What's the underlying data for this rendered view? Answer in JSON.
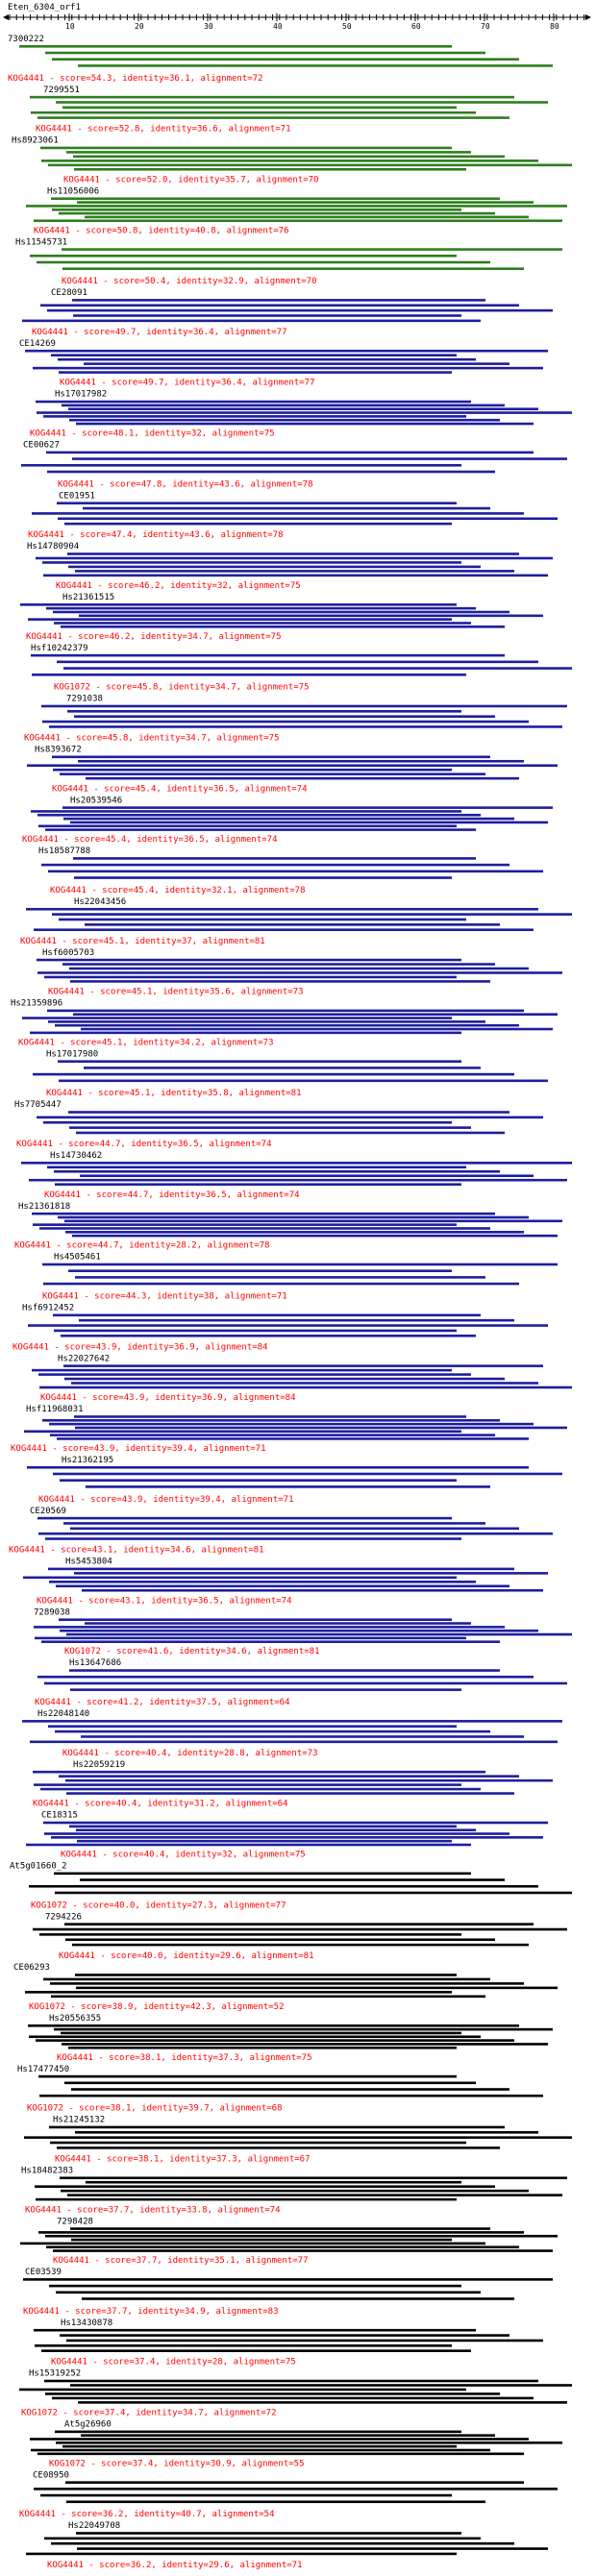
{
  "query": {
    "name": "Eten_6304_orf1"
  },
  "axis": {
    "ticks": [
      "10",
      "20",
      "30",
      "40",
      "50",
      "60",
      "70",
      "80"
    ]
  },
  "colors": {
    "top": "#2e7d1e",
    "mid": "#1e1e9e",
    "low": "#000000",
    "summary": "#ff0000"
  },
  "hits": [
    {
      "id": "7300222",
      "summary": "KOG4441 - score=54.3, identity=36.1, alignment=72",
      "color": "top"
    },
    {
      "id": "7299551",
      "summary": "KOG4441 - score=52.8, identity=36.6, alignment=71",
      "color": "top"
    },
    {
      "id": "Hs8923061",
      "summary": "KOG4441 - score=52.0, identity=35.7, alignment=70",
      "color": "top"
    },
    {
      "id": "Hs11056006",
      "summary": "KOG4441 - score=50.8, identity=40.8, alignment=76",
      "color": "top"
    },
    {
      "id": "Hs11545731",
      "summary": "KOG4441 - score=50.4, identity=32.9, alignment=70",
      "color": "top"
    },
    {
      "id": "CE28091",
      "summary": "KOG4441 - score=49.7, identity=36.4, alignment=77",
      "color": "mid"
    },
    {
      "id": "CE14269",
      "summary": "KOG4441 - score=49.7, identity=36.4, alignment=77",
      "color": "mid"
    },
    {
      "id": "Hs17017982",
      "summary": "KOG4441 - score=48.1, identity=32, alignment=75",
      "color": "mid"
    },
    {
      "id": "CE00627",
      "summary": "KOG4441 - score=47.8, identity=43.6, alignment=78",
      "color": "mid"
    },
    {
      "id": "CE01951",
      "summary": "KOG4441 - score=47.4, identity=43.6, alignment=78",
      "color": "mid"
    },
    {
      "id": "Hs14780904",
      "summary": "KOG4441 - score=46.2, identity=32, alignment=75",
      "color": "mid"
    },
    {
      "id": "Hs21361515",
      "summary": "KOG4441 - score=46.2, identity=34.7, alignment=75",
      "color": "mid"
    },
    {
      "id": "Hsf10242379",
      "summary": "KOG1072 - score=45.8, identity=34.7, alignment=75",
      "color": "mid"
    },
    {
      "id": "7291038",
      "summary": "KOG4441 - score=45.8, identity=34.7, alignment=75",
      "color": "mid"
    },
    {
      "id": "Hs8393672",
      "summary": "KOG4441 - score=45.4, identity=36.5, alignment=74",
      "color": "mid"
    },
    {
      "id": "Hs20539546",
      "summary": "KOG4441 - score=45.4, identity=36.5, alignment=74",
      "color": "mid"
    },
    {
      "id": "Hs18587788",
      "summary": "KOG4441 - score=45.4, identity=32.1, alignment=78",
      "color": "mid"
    },
    {
      "id": "Hs22043456",
      "summary": "KOG4441 - score=45.1, identity=37, alignment=81",
      "color": "mid"
    },
    {
      "id": "Hsf6005703",
      "summary": "KOG4441 - score=45.1, identity=35.6, alignment=73",
      "color": "mid"
    },
    {
      "id": "Hs21359896",
      "summary": "KOG4441 - score=45.1, identity=34.2, alignment=73",
      "color": "mid"
    },
    {
      "id": "Hs17017980",
      "summary": "KOG4441 - score=45.1, identity=35.8, alignment=81",
      "color": "mid"
    },
    {
      "id": "Hs7705447",
      "summary": "KOG4441 - score=44.7, identity=36.5, alignment=74",
      "color": "mid"
    },
    {
      "id": "Hs14730462",
      "summary": "KOG4441 - score=44.7, identity=36.5, alignment=74",
      "color": "mid"
    },
    {
      "id": "Hs21361818",
      "summary": "KOG4441 - score=44.7, identity=28.2, alignment=78",
      "color": "mid"
    },
    {
      "id": "Hs4505461",
      "summary": "KOG4441 - score=44.3, identity=38, alignment=71",
      "color": "mid"
    },
    {
      "id": "Hsf6912452",
      "summary": "KOG4441 - score=43.9, identity=36.9, alignment=84",
      "color": "mid"
    },
    {
      "id": "Hs22027642",
      "summary": "KOG4441 - score=43.9, identity=36.9, alignment=84",
      "color": "mid"
    },
    {
      "id": "Hsf11968031",
      "summary": "KOG4441 - score=43.9, identity=39.4, alignment=71",
      "color": "mid"
    },
    {
      "id": "Hs21362195",
      "summary": "KOG4441 - score=43.9, identity=39.4, alignment=71",
      "color": "mid"
    },
    {
      "id": "CE20569",
      "summary": "KOG4441 - score=43.1, identity=34.6, alignment=81",
      "color": "mid"
    },
    {
      "id": "Hs5453804",
      "summary": "KOG4441 - score=43.1, identity=36.5, alignment=74",
      "color": "mid"
    },
    {
      "id": "7289038",
      "summary": "KOG1072 - score=41.6, identity=34.6, alignment=81",
      "color": "mid"
    },
    {
      "id": "Hs13647686",
      "summary": "KOG4441 - score=41.2, identity=37.5, alignment=64",
      "color": "mid"
    },
    {
      "id": "Hs22048140",
      "summary": "KOG4441 - score=40.4, identity=28.8, alignment=73",
      "color": "mid"
    },
    {
      "id": "Hs22059219",
      "summary": "KOG4441 - score=40.4, identity=31.2, alignment=64",
      "color": "mid"
    },
    {
      "id": "CE18315",
      "summary": "KOG4441 - score=40.4, identity=32, alignment=75",
      "color": "mid"
    },
    {
      "id": "At5g01660_2",
      "summary": "KOG1072 - score=40.0, identity=27.3, alignment=77",
      "color": "low"
    },
    {
      "id": "7294226",
      "summary": "KOG4441 - score=40.0, identity=29.6, alignment=81",
      "color": "low"
    },
    {
      "id": "CE06293",
      "summary": "KOG1072 - score=38.9, identity=42.3, alignment=52",
      "color": "low"
    },
    {
      "id": "Hs20556355",
      "summary": "KOG4441 - score=38.1, identity=37.3, alignment=75",
      "color": "low"
    },
    {
      "id": "Hs17477450",
      "summary": "KOG1072 - score=38.1, identity=39.7, alignment=68",
      "color": "low"
    },
    {
      "id": "Hs21245132",
      "summary": "KOG4441 - score=38.1, identity=37.3, alignment=67",
      "color": "low"
    },
    {
      "id": "Hs18482383",
      "summary": "KOG4441 - score=37.7, identity=33.8, alignment=74",
      "color": "low"
    },
    {
      "id": "7298428",
      "summary": "KOG4441 - score=37.7, identity=35.1, alignment=77",
      "color": "low"
    },
    {
      "id": "CE03539",
      "summary": "KOG4441 - score=37.7, identity=34.9, alignment=83",
      "color": "low"
    },
    {
      "id": "Hs13430878",
      "summary": "KOG4441 - score=37.4, identity=28, alignment=75",
      "color": "low"
    },
    {
      "id": "Hs15319252",
      "summary": "KOG1072 - score=37.4, identity=34.7, alignment=72",
      "color": "low"
    },
    {
      "id": "At5g26960",
      "summary": "KOG1072 - score=37.4, identity=30.9, alignment=55",
      "color": "low"
    },
    {
      "id": "CE08950",
      "summary": "KOG4441 - score=36.2, identity=40.7, alignment=54",
      "color": "low"
    },
    {
      "id": "Hs22049708",
      "summary": "KOG4441 - score=36.2, identity=29.6, alignment=71",
      "color": "low"
    }
  ]
}
